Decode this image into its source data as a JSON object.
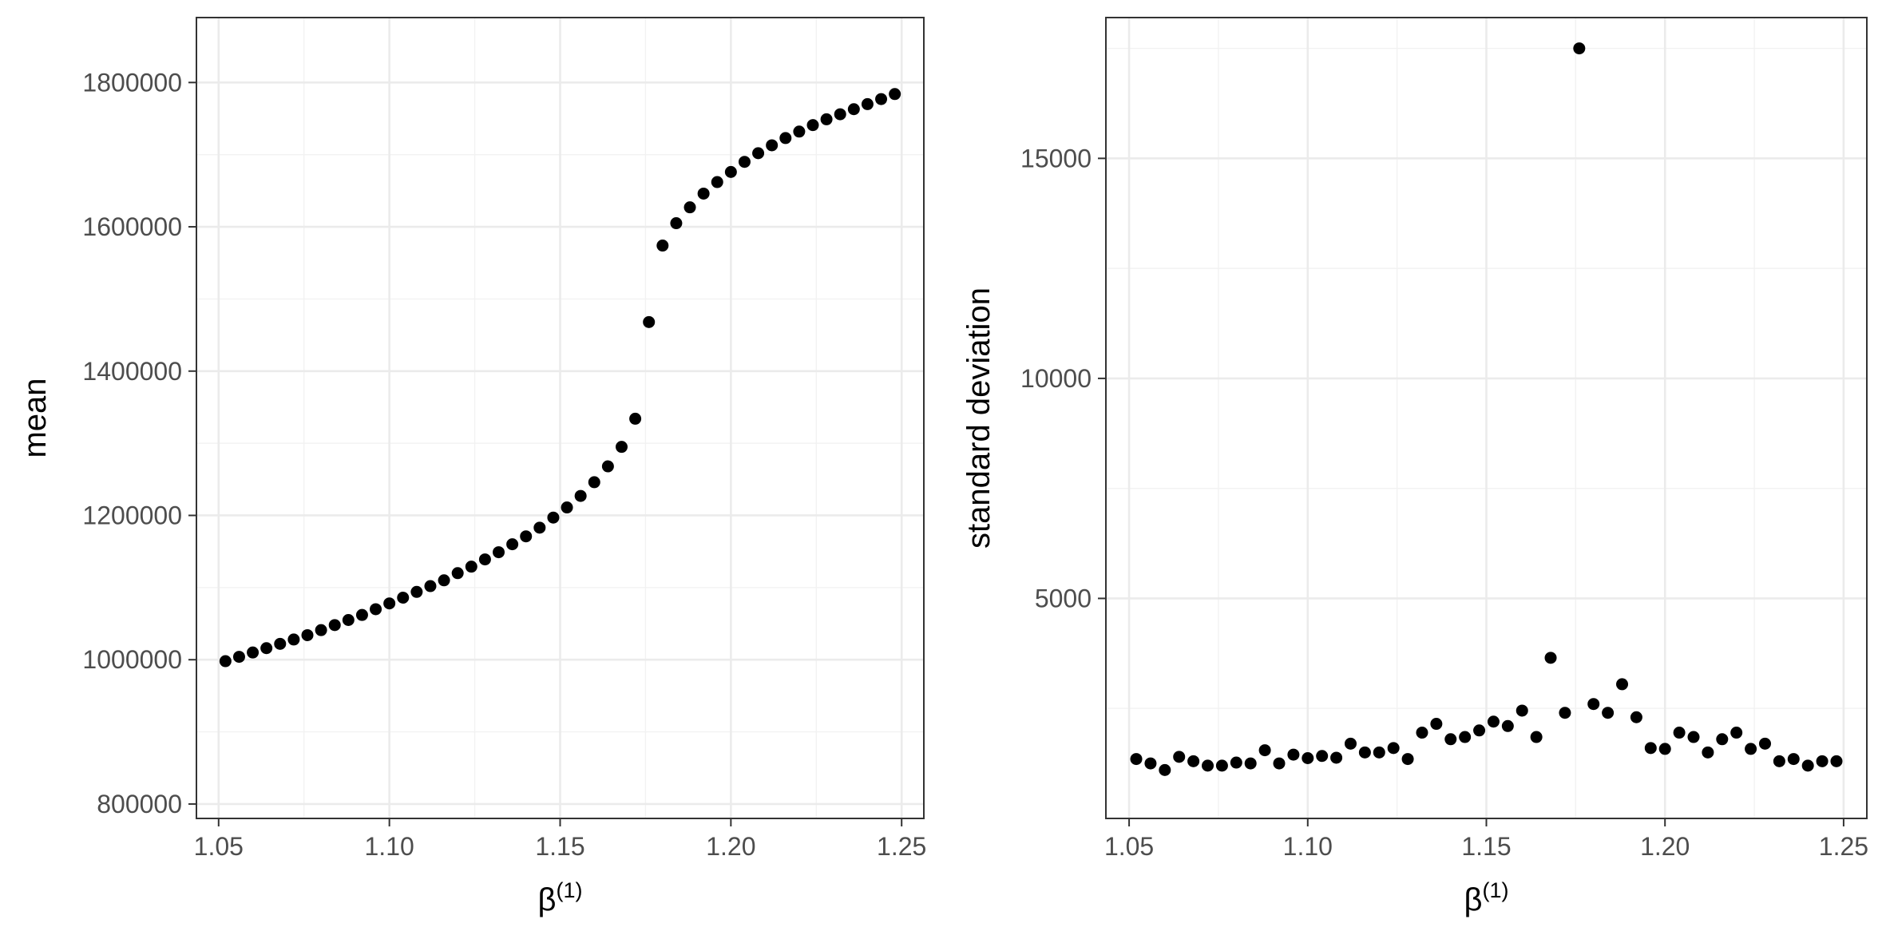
{
  "chart_data": [
    {
      "type": "scatter",
      "title": "",
      "xlabel": "β",
      "xlabel_superscript": "(1)",
      "ylabel": "mean",
      "xlim": [
        1.0435,
        1.2565
      ],
      "ylim": [
        780000,
        1890000
      ],
      "x_ticks": [
        1.05,
        1.1,
        1.15,
        1.2,
        1.25
      ],
      "x_tick_labels": [
        "1.05",
        "1.10",
        "1.15",
        "1.20",
        "1.25"
      ],
      "y_ticks": [
        800000,
        1000000,
        1200000,
        1400000,
        1600000,
        1800000
      ],
      "y_tick_labels": [
        "800000",
        "1000000",
        "1200000",
        "1400000",
        "1600000",
        "1800000"
      ],
      "grid": true,
      "legend": "none",
      "point_color": "#000000",
      "series": [
        {
          "x": [
            1.052,
            1.056,
            1.06,
            1.064,
            1.068,
            1.072,
            1.076,
            1.08,
            1.084,
            1.088,
            1.092,
            1.096,
            1.1,
            1.104,
            1.108,
            1.112,
            1.116,
            1.12,
            1.124,
            1.128,
            1.132,
            1.136,
            1.14,
            1.144,
            1.148,
            1.152,
            1.156,
            1.16,
            1.164,
            1.168,
            1.172,
            1.176,
            1.18,
            1.184,
            1.188,
            1.192,
            1.196,
            1.2,
            1.204,
            1.208,
            1.212,
            1.216,
            1.22,
            1.224,
            1.228,
            1.232,
            1.236,
            1.24,
            1.244,
            1.248
          ],
          "y": [
            998000,
            1004000,
            1010000,
            1016000,
            1022000,
            1028000,
            1034000,
            1041000,
            1048000,
            1055000,
            1062000,
            1070000,
            1078000,
            1086000,
            1094000,
            1102000,
            1110000,
            1120000,
            1129000,
            1139000,
            1149000,
            1160000,
            1171000,
            1183000,
            1197000,
            1211000,
            1227000,
            1246000,
            1268000,
            1295000,
            1334000,
            1468000,
            1574000,
            1605000,
            1627000,
            1646000,
            1662000,
            1676000,
            1690000,
            1702000,
            1713000,
            1723000,
            1732000,
            1741000,
            1749000,
            1756000,
            1763000,
            1770000,
            1777000,
            1784000
          ]
        }
      ]
    },
    {
      "type": "scatter",
      "title": "",
      "xlabel": "β",
      "xlabel_superscript": "(1)",
      "ylabel": "standard deviation",
      "xlim": [
        1.0435,
        1.2565
      ],
      "ylim": [
        0,
        18200
      ],
      "x_ticks": [
        1.05,
        1.1,
        1.15,
        1.2,
        1.25
      ],
      "x_tick_labels": [
        "1.05",
        "1.10",
        "1.15",
        "1.20",
        "1.25"
      ],
      "y_ticks": [
        5000,
        10000,
        15000
      ],
      "y_tick_labels": [
        "5000",
        "10000",
        "15000"
      ],
      "grid": true,
      "legend": "none",
      "point_color": "#000000",
      "series": [
        {
          "x": [
            1.052,
            1.056,
            1.06,
            1.064,
            1.068,
            1.072,
            1.076,
            1.08,
            1.084,
            1.088,
            1.092,
            1.096,
            1.1,
            1.104,
            1.108,
            1.112,
            1.116,
            1.12,
            1.124,
            1.128,
            1.132,
            1.136,
            1.14,
            1.144,
            1.148,
            1.152,
            1.156,
            1.16,
            1.164,
            1.168,
            1.172,
            1.176,
            1.18,
            1.184,
            1.188,
            1.192,
            1.196,
            1.2,
            1.204,
            1.208,
            1.212,
            1.216,
            1.22,
            1.224,
            1.228,
            1.232,
            1.236,
            1.24,
            1.244,
            1.248
          ],
          "y": [
            1350,
            1250,
            1100,
            1400,
            1300,
            1200,
            1200,
            1270,
            1250,
            1550,
            1250,
            1450,
            1370,
            1420,
            1380,
            1700,
            1500,
            1500,
            1600,
            1350,
            1950,
            2150,
            1800,
            1850,
            2000,
            2200,
            2100,
            2450,
            1850,
            3650,
            2400,
            17500,
            2600,
            2400,
            3050,
            2300,
            1600,
            1580,
            1950,
            1850,
            1500,
            1800,
            1950,
            1580,
            1700,
            1300,
            1350,
            1200,
            1300,
            1300
          ]
        }
      ]
    }
  ]
}
